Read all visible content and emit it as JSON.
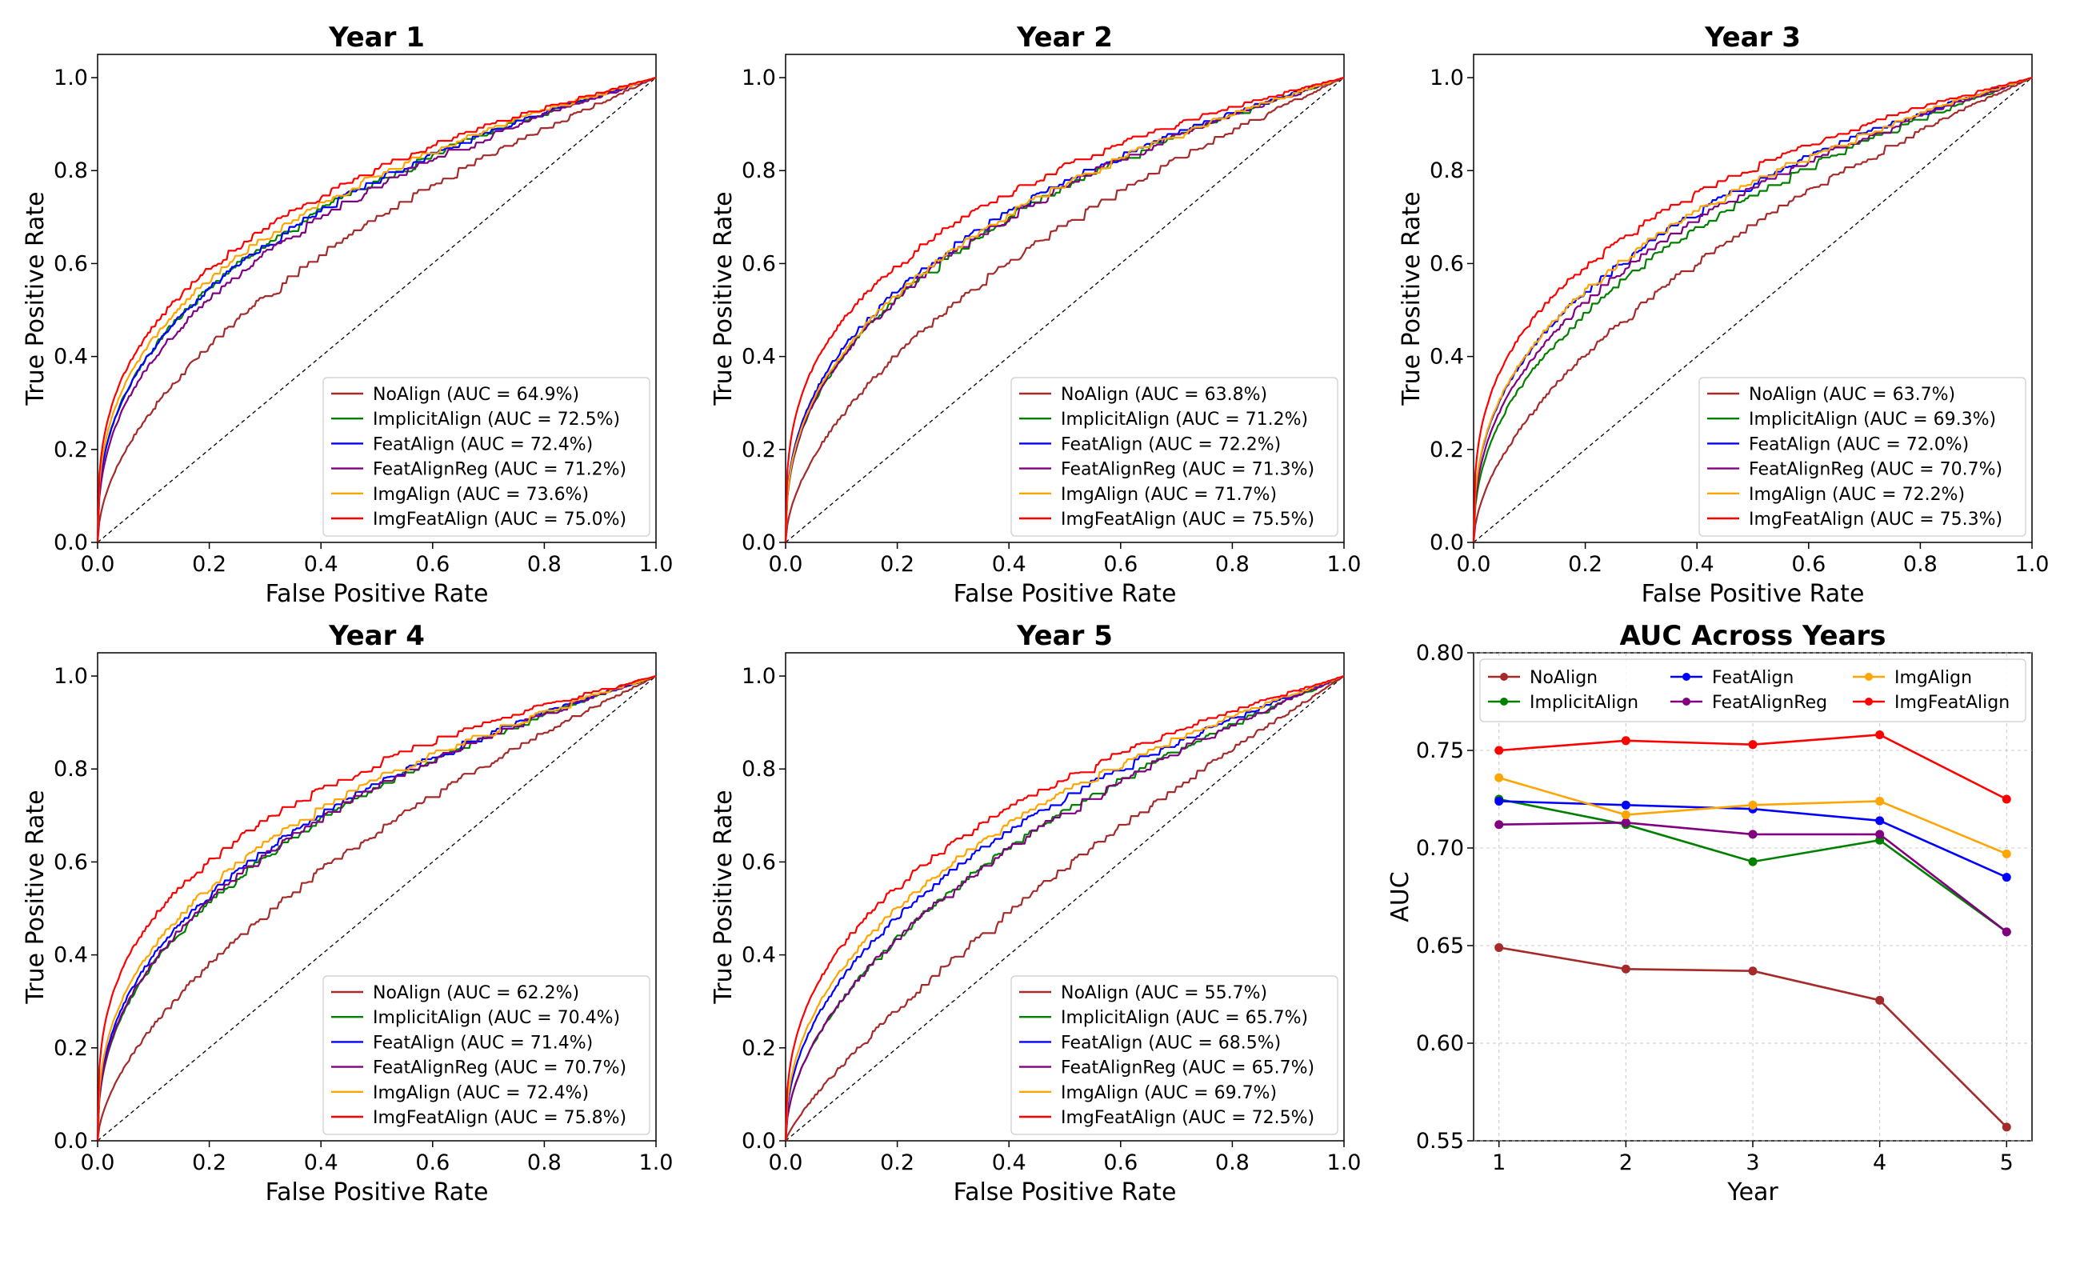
{
  "colors": {
    "NoAlign": "#a52a2a",
    "ImplicitAlign": "#008000",
    "FeatAlign": "#0000ff",
    "FeatAlignReg": "#800080",
    "ImgAlign": "#ffa500",
    "ImgFeatAlign": "#ff0000",
    "chance": "#000000"
  },
  "chart_data": [
    {
      "type": "line",
      "subtype": "roc",
      "title": "Year 1",
      "xlabel": "False Positive Rate",
      "ylabel": "True Positive Rate",
      "xlim": [
        0,
        1
      ],
      "ylim": [
        0,
        1.05
      ],
      "xticks": [
        "0.0",
        "0.2",
        "0.4",
        "0.6",
        "0.8",
        "1.0"
      ],
      "yticks": [
        "0.0",
        "0.2",
        "0.4",
        "0.6",
        "0.8",
        "1.0"
      ],
      "legend_position": "lower-right",
      "series": [
        {
          "name": "NoAlign",
          "legend": "NoAlign (AUC = 64.9%)",
          "auc": 0.649
        },
        {
          "name": "ImplicitAlign",
          "legend": "ImplicitAlign (AUC = 72.5%)",
          "auc": 0.725
        },
        {
          "name": "FeatAlign",
          "legend": "FeatAlign (AUC = 72.4%)",
          "auc": 0.724
        },
        {
          "name": "FeatAlignReg",
          "legend": "FeatAlignReg (AUC = 71.2%)",
          "auc": 0.712
        },
        {
          "name": "ImgAlign",
          "legend": "ImgAlign (AUC = 73.6%)",
          "auc": 0.736
        },
        {
          "name": "ImgFeatAlign",
          "legend": "ImgFeatAlign (AUC = 75.0%)",
          "auc": 0.75
        }
      ]
    },
    {
      "type": "line",
      "subtype": "roc",
      "title": "Year 2",
      "xlabel": "False Positive Rate",
      "ylabel": "True Positive Rate",
      "xlim": [
        0,
        1
      ],
      "ylim": [
        0,
        1.05
      ],
      "xticks": [
        "0.0",
        "0.2",
        "0.4",
        "0.6",
        "0.8",
        "1.0"
      ],
      "yticks": [
        "0.0",
        "0.2",
        "0.4",
        "0.6",
        "0.8",
        "1.0"
      ],
      "legend_position": "lower-right",
      "series": [
        {
          "name": "NoAlign",
          "legend": "NoAlign (AUC = 63.8%)",
          "auc": 0.638
        },
        {
          "name": "ImplicitAlign",
          "legend": "ImplicitAlign (AUC = 71.2%)",
          "auc": 0.712
        },
        {
          "name": "FeatAlign",
          "legend": "FeatAlign (AUC = 72.2%)",
          "auc": 0.722
        },
        {
          "name": "FeatAlignReg",
          "legend": "FeatAlignReg (AUC = 71.3%)",
          "auc": 0.713
        },
        {
          "name": "ImgAlign",
          "legend": "ImgAlign (AUC = 71.7%)",
          "auc": 0.717
        },
        {
          "name": "ImgFeatAlign",
          "legend": "ImgFeatAlign (AUC = 75.5%)",
          "auc": 0.755
        }
      ]
    },
    {
      "type": "line",
      "subtype": "roc",
      "title": "Year 3",
      "xlabel": "False Positive Rate",
      "ylabel": "True Positive Rate",
      "xlim": [
        0,
        1
      ],
      "ylim": [
        0,
        1.05
      ],
      "xticks": [
        "0.0",
        "0.2",
        "0.4",
        "0.6",
        "0.8",
        "1.0"
      ],
      "yticks": [
        "0.0",
        "0.2",
        "0.4",
        "0.6",
        "0.8",
        "1.0"
      ],
      "legend_position": "lower-right",
      "series": [
        {
          "name": "NoAlign",
          "legend": "NoAlign (AUC = 63.7%)",
          "auc": 0.637
        },
        {
          "name": "ImplicitAlign",
          "legend": "ImplicitAlign (AUC = 69.3%)",
          "auc": 0.693
        },
        {
          "name": "FeatAlign",
          "legend": "FeatAlign (AUC = 72.0%)",
          "auc": 0.72
        },
        {
          "name": "FeatAlignReg",
          "legend": "FeatAlignReg (AUC = 70.7%)",
          "auc": 0.707
        },
        {
          "name": "ImgAlign",
          "legend": "ImgAlign (AUC = 72.2%)",
          "auc": 0.722
        },
        {
          "name": "ImgFeatAlign",
          "legend": "ImgFeatAlign (AUC = 75.3%)",
          "auc": 0.753
        }
      ]
    },
    {
      "type": "line",
      "subtype": "roc",
      "title": "Year 4",
      "xlabel": "False Positive Rate",
      "ylabel": "True Positive Rate",
      "xlim": [
        0,
        1
      ],
      "ylim": [
        0,
        1.05
      ],
      "xticks": [
        "0.0",
        "0.2",
        "0.4",
        "0.6",
        "0.8",
        "1.0"
      ],
      "yticks": [
        "0.0",
        "0.2",
        "0.4",
        "0.6",
        "0.8",
        "1.0"
      ],
      "legend_position": "lower-right",
      "series": [
        {
          "name": "NoAlign",
          "legend": "NoAlign (AUC = 62.2%)",
          "auc": 0.622
        },
        {
          "name": "ImplicitAlign",
          "legend": "ImplicitAlign (AUC = 70.4%)",
          "auc": 0.704
        },
        {
          "name": "FeatAlign",
          "legend": "FeatAlign (AUC = 71.4%)",
          "auc": 0.714
        },
        {
          "name": "FeatAlignReg",
          "legend": "FeatAlignReg (AUC = 70.7%)",
          "auc": 0.707
        },
        {
          "name": "ImgAlign",
          "legend": "ImgAlign (AUC = 72.4%)",
          "auc": 0.724
        },
        {
          "name": "ImgFeatAlign",
          "legend": "ImgFeatAlign (AUC = 75.8%)",
          "auc": 0.758
        }
      ]
    },
    {
      "type": "line",
      "subtype": "roc",
      "title": "Year 5",
      "xlabel": "False Positive Rate",
      "ylabel": "True Positive Rate",
      "xlim": [
        0,
        1
      ],
      "ylim": [
        0,
        1.05
      ],
      "xticks": [
        "0.0",
        "0.2",
        "0.4",
        "0.6",
        "0.8",
        "1.0"
      ],
      "yticks": [
        "0.0",
        "0.2",
        "0.4",
        "0.6",
        "0.8",
        "1.0"
      ],
      "legend_position": "lower-right",
      "series": [
        {
          "name": "NoAlign",
          "legend": "NoAlign (AUC = 55.7%)",
          "auc": 0.557
        },
        {
          "name": "ImplicitAlign",
          "legend": "ImplicitAlign (AUC = 65.7%)",
          "auc": 0.657
        },
        {
          "name": "FeatAlign",
          "legend": "FeatAlign (AUC = 68.5%)",
          "auc": 0.685
        },
        {
          "name": "FeatAlignReg",
          "legend": "FeatAlignReg (AUC = 65.7%)",
          "auc": 0.657
        },
        {
          "name": "ImgAlign",
          "legend": "ImgAlign (AUC = 69.7%)",
          "auc": 0.697
        },
        {
          "name": "ImgFeatAlign",
          "legend": "ImgFeatAlign (AUC = 72.5%)",
          "auc": 0.725
        }
      ]
    },
    {
      "type": "line",
      "title": "AUC Across Years",
      "xlabel": "Year",
      "ylabel": "AUC",
      "x": [
        1,
        2,
        3,
        4,
        5
      ],
      "xlim": [
        0.8,
        5.2
      ],
      "ylim": [
        0.55,
        0.8
      ],
      "xticks": [
        "1",
        "2",
        "3",
        "4",
        "5"
      ],
      "yticks": [
        "0.55",
        "0.60",
        "0.65",
        "0.70",
        "0.75",
        "0.80"
      ],
      "grid": true,
      "legend_position": "top",
      "series": [
        {
          "name": "NoAlign",
          "values": [
            0.649,
            0.638,
            0.637,
            0.622,
            0.557
          ]
        },
        {
          "name": "ImplicitAlign",
          "values": [
            0.725,
            0.712,
            0.693,
            0.704,
            0.657
          ]
        },
        {
          "name": "FeatAlign",
          "values": [
            0.724,
            0.722,
            0.72,
            0.714,
            0.685
          ]
        },
        {
          "name": "FeatAlignReg",
          "values": [
            0.712,
            0.713,
            0.707,
            0.707,
            0.657
          ]
        },
        {
          "name": "ImgAlign",
          "values": [
            0.736,
            0.717,
            0.722,
            0.724,
            0.697
          ]
        },
        {
          "name": "ImgFeatAlign",
          "values": [
            0.75,
            0.755,
            0.753,
            0.758,
            0.725
          ]
        }
      ]
    }
  ]
}
